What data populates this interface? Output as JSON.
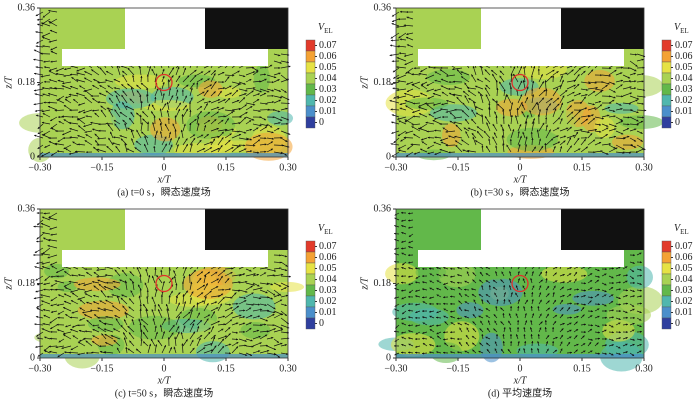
{
  "chart_data": [
    {
      "type": "vector-field",
      "title": "(a) t=0 s，瞬态速度场",
      "xlabel": "x/T",
      "ylabel": "z/T",
      "xlim": [
        -0.3,
        0.3
      ],
      "xticks": [
        {
          "value": -0.3,
          "label": "−0.30"
        },
        {
          "value": -0.15,
          "label": "−0.15"
        },
        0,
        0.15,
        {
          "value": 0.3,
          "label": "0.30"
        }
      ],
      "ylim": [
        0,
        0.36
      ],
      "yticks": [
        0,
        0.18,
        0.36
      ],
      "colorbar": {
        "title": "V",
        "subscript": "EL",
        "ticks": [
          0.07,
          0.06,
          0.05,
          0.04,
          0.03,
          0.02,
          0.01,
          0
        ],
        "colors": [
          "#e23b2b",
          "#f4a234",
          "#e6e244",
          "#a9d253",
          "#62b84a",
          "#4fb7ae",
          "#4b8fcb",
          "#2f3f9e"
        ]
      }
    },
    {
      "type": "vector-field",
      "title": "(b) t=30 s，瞬态速度场",
      "xlabel": "x/T",
      "ylabel": "z/T",
      "xlim": [
        -0.3,
        0.3
      ],
      "xticks": [
        {
          "value": -0.3,
          "label": "−0.30"
        },
        {
          "value": -0.15,
          "label": "−0.15"
        },
        0,
        0.15,
        {
          "value": 0.3,
          "label": "0.30"
        }
      ],
      "ylim": [
        0,
        0.36
      ],
      "yticks": [
        0,
        0.18,
        0.36
      ],
      "colorbar": {
        "title": "V",
        "subscript": "EL",
        "ticks": [
          0.07,
          0.06,
          0.05,
          0.04,
          0.03,
          0.02,
          0.01,
          0
        ],
        "colors": [
          "#e23b2b",
          "#f4a234",
          "#e6e244",
          "#a9d253",
          "#62b84a",
          "#4fb7ae",
          "#4b8fcb",
          "#2f3f9e"
        ]
      }
    },
    {
      "type": "vector-field",
      "title": "(c) t=50 s，瞬态速度场",
      "xlabel": "x/T",
      "ylabel": "z/T",
      "xlim": [
        -0.3,
        0.3
      ],
      "xticks": [
        {
          "value": -0.3,
          "label": "−0.30"
        },
        {
          "value": -0.15,
          "label": "−0.15"
        },
        0,
        0.15,
        {
          "value": 0.3,
          "label": "0.30"
        }
      ],
      "ylim": [
        0,
        0.36
      ],
      "yticks": [
        0,
        0.18,
        0.36
      ],
      "colorbar": {
        "title": "V",
        "subscript": "EL",
        "ticks": [
          0.07,
          0.06,
          0.05,
          0.04,
          0.03,
          0.02,
          0.01,
          0
        ],
        "colors": [
          "#e23b2b",
          "#f4a234",
          "#e6e244",
          "#a9d253",
          "#62b84a",
          "#4fb7ae",
          "#4b8fcb",
          "#2f3f9e"
        ]
      }
    },
    {
      "type": "vector-field",
      "title": "(d) 平均速度场",
      "xlabel": "x/T",
      "ylabel": "z/T",
      "xlim": [
        -0.3,
        0.3
      ],
      "xticks": [
        {
          "value": -0.3,
          "label": "−0.30"
        },
        {
          "value": -0.15,
          "label": "−0.15"
        },
        0,
        0.15,
        {
          "value": 0.3,
          "label": "0.30"
        }
      ],
      "ylim": [
        0,
        0.36
      ],
      "yticks": [
        0,
        0.18,
        0.36
      ],
      "colorbar": {
        "title": "V",
        "subscript": "EL",
        "ticks": [
          0.07,
          0.06,
          0.05,
          0.04,
          0.03,
          0.02,
          0.01,
          0
        ],
        "colors": [
          "#e23b2b",
          "#f4a234",
          "#e6e244",
          "#a9d253",
          "#62b84a",
          "#4fb7ae",
          "#4b8fcb",
          "#2f3f9e"
        ]
      }
    }
  ]
}
